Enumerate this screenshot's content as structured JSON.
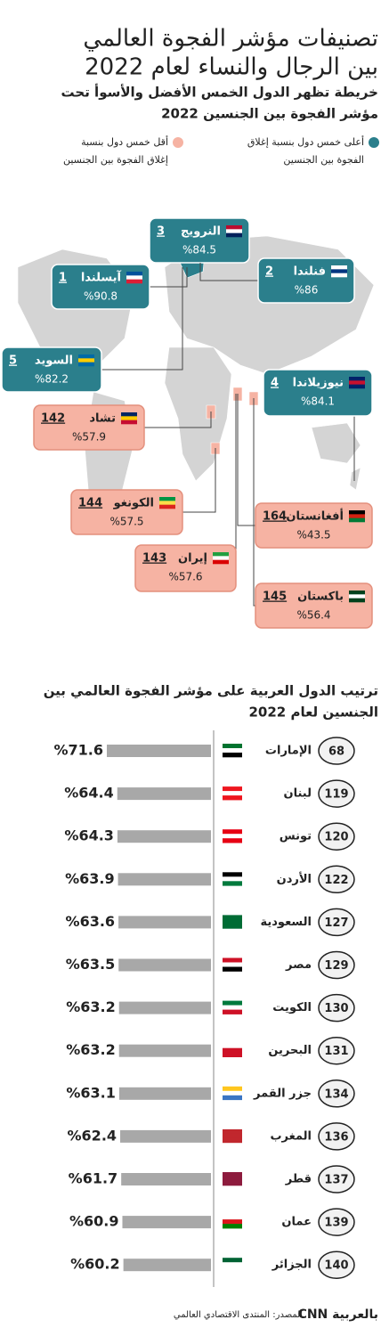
{
  "header": {
    "title": [
      "تصنيفات مؤشر الفجوة العالمي",
      "بين الرجال والنساء لعام 2022"
    ],
    "subtitle": [
      "خريطة تظهر الدول الخمس الأفضل والأسوأ تحت",
      "مؤشر الفجوة بين الجنسين 2022"
    ]
  },
  "legend": [
    {
      "label": [
        "أعلى خمس دول بنسبة إغلاق",
        "الفجوة بين الجنسين"
      ],
      "color": "#2b7f8c"
    },
    {
      "label": [
        "أقل خمس دول بنسبة",
        "إغلاق الفجوة بين الجنسين"
      ],
      "color": "#f6b3a3"
    }
  ],
  "map": {
    "callouts": [
      {
        "rank": 3,
        "name": "النرويج",
        "share": "%84.5",
        "color": "#2b7f8c"
      },
      {
        "rank": 1,
        "name": "آيسلندا",
        "share": "%90.8",
        "color": "#2b7f8c"
      },
      {
        "rank": 2,
        "name": "فنلندا",
        "share": "%86",
        "color": "#2b7f8c"
      },
      {
        "rank": 5,
        "name": "السويد",
        "share": "%82.2",
        "color": "#2b7f8c"
      },
      {
        "rank": 4,
        "name": "نيوزيلاندا",
        "share": "%84.1",
        "color": "#2b7f8c"
      },
      {
        "rank": 142,
        "name": "تشاد",
        "share": "%57.9",
        "color": "#f6b3a3"
      },
      {
        "rank": 144,
        "name": "الكونغو",
        "share": "%57.5",
        "color": "#f6b3a3"
      },
      {
        "rank": 164,
        "name": "أفغانستان",
        "share": "%43.5",
        "color": "#f6b3a3"
      },
      {
        "rank": 143,
        "name": "إيران",
        "share": "%57.6",
        "color": "#f6b3a3"
      },
      {
        "rank": 145,
        "name": "باكستان",
        "share": "%56.4",
        "color": "#f6b3a3"
      }
    ]
  },
  "chart_data": {
    "type": "bar",
    "orientation": "horizontal",
    "title": [
      "ترتيب الدول العربية على مؤشر الفجوة العالمي بين",
      "الجنسين لعام 2022"
    ],
    "ranks": [
      68,
      119,
      120,
      122,
      127,
      129,
      130,
      131,
      134,
      136,
      137,
      139,
      140
    ],
    "categories": [
      "الإمارات",
      "لبنان",
      "تونس",
      "الأردن",
      "السعودية",
      "مصر",
      "الكويت",
      "البحرين",
      "جزر القمر",
      "المغرب",
      "قطر",
      "عمان",
      "الجزائر"
    ],
    "values": [
      71.6,
      64.4,
      64.3,
      63.9,
      63.6,
      63.5,
      63.2,
      63.2,
      63.1,
      62.4,
      61.7,
      60.9,
      60.2
    ],
    "value_labels": [
      "%71.6",
      "%64.4",
      "%64.3",
      "%63.9",
      "%63.6",
      "%63.5",
      "%63.2",
      "%63.2",
      "%63.1",
      "%62.4",
      "%61.7",
      "%60.9",
      "%60.2"
    ],
    "color": "#a8a8a8"
  },
  "source": "المصدر: المنتدى الاقتصادي العالمي",
  "logo": "CNN بالعربية"
}
